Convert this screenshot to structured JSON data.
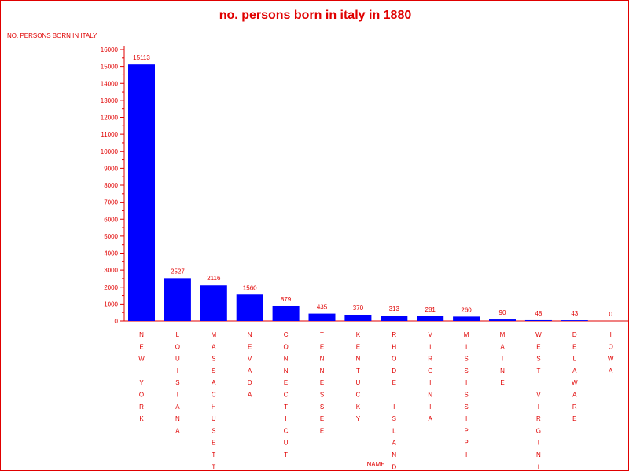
{
  "chart_data": {
    "type": "bar",
    "title": "no. persons born in italy in 1880",
    "ylabel": "NO. PERSONS BORN IN ITALY",
    "xlabel": "NAME",
    "categories": [
      "NEW YORK",
      "LOUISIANA",
      "MASSACHUSETTS",
      "NEVADA",
      "CONNECTICUT",
      "TENNESSEE",
      "KENTUCKY",
      "RHODE ISLAND",
      "VIRGINIA",
      "MISSISSIPPI",
      "MAINE",
      "WEST VIRGINIA",
      "DELAWARE",
      "IOWA"
    ],
    "values": [
      15113,
      2527,
      2116,
      1560,
      879,
      435,
      370,
      313,
      281,
      260,
      90,
      48,
      43,
      0
    ],
    "ylim": [
      0,
      16000
    ],
    "yticks": [
      0,
      1000,
      2000,
      3000,
      4000,
      5000,
      6000,
      7000,
      8000,
      9000,
      10000,
      11000,
      12000,
      13000,
      14000,
      15000,
      16000
    ],
    "grid": false,
    "colors": {
      "bar": "#0000ff",
      "text": "#e00000",
      "axis": "#e00000"
    }
  }
}
